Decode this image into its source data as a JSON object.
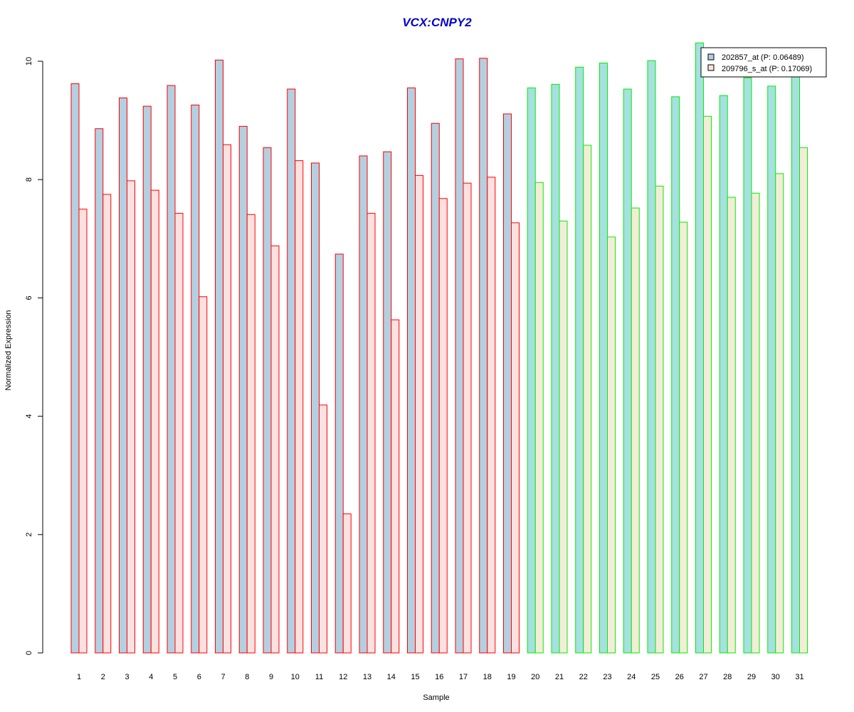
{
  "chart_data": {
    "type": "bar",
    "title": "VCX:CNPY2",
    "xlabel": "Sample",
    "ylabel": "Normalized Expression",
    "ylim": [
      0,
      10
    ],
    "y_ticks": [
      0,
      2,
      4,
      6,
      8,
      10
    ],
    "grid": false,
    "legend_position": "top-right",
    "categories": [
      "1",
      "2",
      "3",
      "4",
      "5",
      "6",
      "7",
      "8",
      "9",
      "10",
      "11",
      "12",
      "13",
      "14",
      "15",
      "16",
      "17",
      "18",
      "19",
      "20",
      "21",
      "22",
      "23",
      "24",
      "25",
      "26",
      "27",
      "28",
      "29",
      "30",
      "31"
    ],
    "group_a_count": 19,
    "series": [
      {
        "name": "202857_at (P: 0.06489)",
        "fill_group_a": "#b4cfe0",
        "fill_group_b": "#a6e0e0",
        "values": [
          9.62,
          8.86,
          9.38,
          9.24,
          9.59,
          9.26,
          10.02,
          8.9,
          8.54,
          9.53,
          8.28,
          6.74,
          8.4,
          8.47,
          9.55,
          8.95,
          10.04,
          10.05,
          9.11,
          9.55,
          9.61,
          9.9,
          9.97,
          9.53,
          10.01,
          9.4,
          10.31,
          9.42,
          9.72,
          9.58,
          9.75
        ]
      },
      {
        "name": "209796_s_at (P: 0.17069)",
        "fill_group_a": "#fde1e0",
        "fill_group_b": "#f5ecd8",
        "values": [
          7.5,
          7.75,
          7.98,
          7.82,
          7.43,
          6.02,
          8.59,
          7.41,
          6.88,
          8.32,
          4.19,
          2.35,
          7.43,
          5.63,
          8.07,
          7.68,
          7.94,
          8.04,
          7.27,
          7.95,
          7.3,
          8.58,
          7.03,
          7.52,
          7.89,
          7.28,
          9.07,
          7.7,
          7.77,
          8.1,
          8.54
        ]
      }
    ],
    "colors": {
      "title": "#0000cc",
      "border_group_a": "#ff0000",
      "border_group_b": "#00ee00",
      "legend_swatch_1": "#b4cfe0",
      "legend_swatch_2": "#fde1e0"
    }
  }
}
